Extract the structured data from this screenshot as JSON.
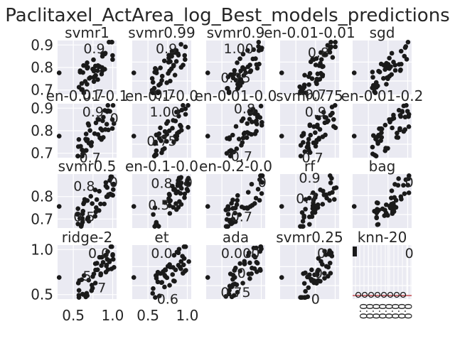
{
  "chart_data": {
    "type": "scatter",
    "title": "Paclitaxel_ActArea_log_Best_models_predictions",
    "colors": {
      "panel": "#eaeaf2",
      "grid": "#ffffff",
      "point": "#1a1a1a",
      "text": "#262626",
      "line": "#c44e52"
    },
    "panels": [
      {
        "name": "svmr1",
        "ylim": [
          0.68,
          0.92
        ],
        "yticks": [
          {
            "v": 0.7,
            "label": "0.7"
          },
          {
            "v": 0.8,
            "label": "0.8"
          },
          {
            "v": 0.9,
            "label": "0.9"
          }
        ],
        "overlay": [
          {
            "text": "0.9",
            "fx": 0.62,
            "fy": 0.08
          },
          {
            "text": "0.7",
            "fx": 0.6,
            "fy": 0.93
          }
        ]
      },
      {
        "name": "svmr0.99",
        "ylim": [
          0.68,
          0.92
        ],
        "yticks": [],
        "overlay": [
          {
            "text": "0.9",
            "fx": 0.58,
            "fy": 0.08
          },
          {
            "text": "0.7",
            "fx": 0.55,
            "fy": 0.93
          }
        ]
      },
      {
        "name": "svmr0.9",
        "ylim": [
          0.68,
          0.92
        ],
        "yticks": [],
        "overlay": [
          {
            "text": "1.00",
            "fx": 0.55,
            "fy": 0.08
          },
          {
            "text": "0.75",
            "fx": 0.5,
            "fy": 0.62
          }
        ]
      },
      {
        "name": "en-0.01-0.01",
        "ylim": [
          0.68,
          0.92
        ],
        "yticks": [],
        "overlay": [
          {
            "text": "0.8",
            "fx": 0.65,
            "fy": 0.15
          },
          {
            "text": "0.7",
            "fx": 0.6,
            "fy": 0.93
          }
        ]
      },
      {
        "name": "sgd",
        "ylim": [
          0.68,
          0.92
        ],
        "yticks": [],
        "overlay": []
      },
      {
        "name": "en-0.01-0.1",
        "ylim": [
          0.68,
          0.92
        ],
        "yticks": [
          {
            "v": 0.7,
            "label": "0.7"
          },
          {
            "v": 0.8,
            "label": "0.8"
          },
          {
            "v": 0.9,
            "label": "0.9"
          }
        ],
        "overlay": [
          {
            "text": "0.9",
            "fx": 0.6,
            "fy": 0.08
          },
          {
            "text": "0",
            "fx": 0.96,
            "fy": 0.2
          },
          {
            "text": "0.7",
            "fx": 0.55,
            "fy": 0.93
          }
        ]
      },
      {
        "name": "en-0.1-0.0",
        "ylim": [
          0.68,
          0.92
        ],
        "yticks": [],
        "overlay": [
          {
            "text": "1.00",
            "fx": 0.55,
            "fy": 0.08
          },
          {
            "text": "0.75",
            "fx": 0.5,
            "fy": 0.62
          }
        ]
      },
      {
        "name": "en-0.01-0.0",
        "ylim": [
          0.68,
          0.92
        ],
        "yticks": [],
        "overlay": [
          {
            "text": "0.8",
            "fx": 0.65,
            "fy": 0.02
          },
          {
            "text": "0.7",
            "fx": 0.6,
            "fy": 0.9
          }
        ]
      },
      {
        "name": "svmr0.75",
        "ylim": [
          0.68,
          0.92
        ],
        "yticks": [],
        "overlay": [
          {
            "text": "0.9",
            "fx": 0.6,
            "fy": 0.08
          },
          {
            "text": "0.7",
            "fx": 0.55,
            "fy": 0.93
          }
        ]
      },
      {
        "name": "en-0.01-0.2",
        "ylim": [
          0.68,
          0.92
        ],
        "yticks": [],
        "overlay": []
      },
      {
        "name": "svmr0.5",
        "ylim": [
          0.66,
          0.9
        ],
        "yticks": [
          {
            "v": 0.7,
            "label": "0.7"
          },
          {
            "v": 0.8,
            "label": "0.8"
          }
        ],
        "overlay": [
          {
            "text": "0.8",
            "fx": 0.45,
            "fy": 0.15
          },
          {
            "text": "0",
            "fx": 0.95,
            "fy": 0.08
          },
          {
            "text": "0.5",
            "fx": 0.45,
            "fy": 0.72
          }
        ]
      },
      {
        "name": "en-0.1-0.0",
        "ylim": [
          0.66,
          0.9
        ],
        "yticks": [],
        "overlay": [
          {
            "text": "0.8",
            "fx": 0.5,
            "fy": 0.1
          },
          {
            "text": "0",
            "fx": 0.95,
            "fy": 0.08
          },
          {
            "text": "0.5",
            "fx": 0.45,
            "fy": 0.5
          }
        ]
      },
      {
        "name": "en-0.2-0.0",
        "ylim": [
          0.66,
          0.9
        ],
        "yticks": [],
        "overlay": [
          {
            "text": "0",
            "fx": 0.95,
            "fy": 0.08
          },
          {
            "text": "0.7",
            "fx": 0.6,
            "fy": 0.72
          }
        ]
      },
      {
        "name": "rf",
        "ylim": [
          0.66,
          0.9
        ],
        "yticks": [],
        "overlay": [
          {
            "text": "0.9",
            "fx": 0.5,
            "fy": 0.0
          },
          {
            "text": "0.7",
            "fx": 0.45,
            "fy": 0.38
          }
        ]
      },
      {
        "name": "bag",
        "ylim": [
          0.66,
          0.9
        ],
        "yticks": [],
        "overlay": [
          {
            "text": "0",
            "fx": 0.96,
            "fy": 0.08
          }
        ]
      },
      {
        "name": "ridge-2",
        "ylim": [
          0.45,
          1.05
        ],
        "yticks": [
          {
            "v": 0.5,
            "label": "0.5"
          },
          {
            "v": 1.0,
            "label": "1.0"
          }
        ],
        "xticks": [
          {
            "v": 0.5,
            "label": "0.5"
          },
          {
            "v": 1.0,
            "label": "1.0"
          }
        ],
        "overlay": [
          {
            "text": "0.0",
            "fx": 0.7,
            "fy": 0.08
          },
          {
            "text": "5",
            "fx": 0.5,
            "fy": 0.5
          },
          {
            "text": "7",
            "fx": 0.75,
            "fy": 0.72
          }
        ]
      },
      {
        "name": "et",
        "ylim": [
          0.45,
          1.05
        ],
        "yticks": [],
        "xticks": [
          {
            "v": 0.5,
            "label": "0.5"
          },
          {
            "v": 1.0,
            "label": "1.0"
          }
        ],
        "overlay": [
          {
            "text": "0.0",
            "fx": 0.5,
            "fy": 0.08
          },
          {
            "text": "0.6",
            "fx": 0.6,
            "fy": 0.93
          }
        ]
      },
      {
        "name": "ada",
        "ylim": [
          0.45,
          1.05
        ],
        "yticks": [],
        "overlay": [
          {
            "text": "0.000",
            "fx": 0.58,
            "fy": 0.08
          },
          {
            "text": "0",
            "fx": 0.6,
            "fy": 0.45
          },
          {
            "text": "0.75",
            "fx": 0.5,
            "fy": 0.8
          }
        ]
      },
      {
        "name": "svmr0.25",
        "ylim": [
          0.45,
          1.05
        ],
        "yticks": [],
        "overlay": [
          {
            "text": "0",
            "fx": 0.7,
            "fy": 0.08
          },
          {
            "text": "0",
            "fx": 0.65,
            "fy": 0.45
          },
          {
            "text": "0",
            "fx": 0.6,
            "fy": 0.93
          }
        ]
      },
      {
        "name": "knn-20",
        "ylim": [
          0.45,
          1.05
        ],
        "yticks": [],
        "knn": true,
        "overlay": [
          {
            "text": "0",
            "fx": 0.96,
            "fy": 0.08
          }
        ]
      }
    ]
  }
}
